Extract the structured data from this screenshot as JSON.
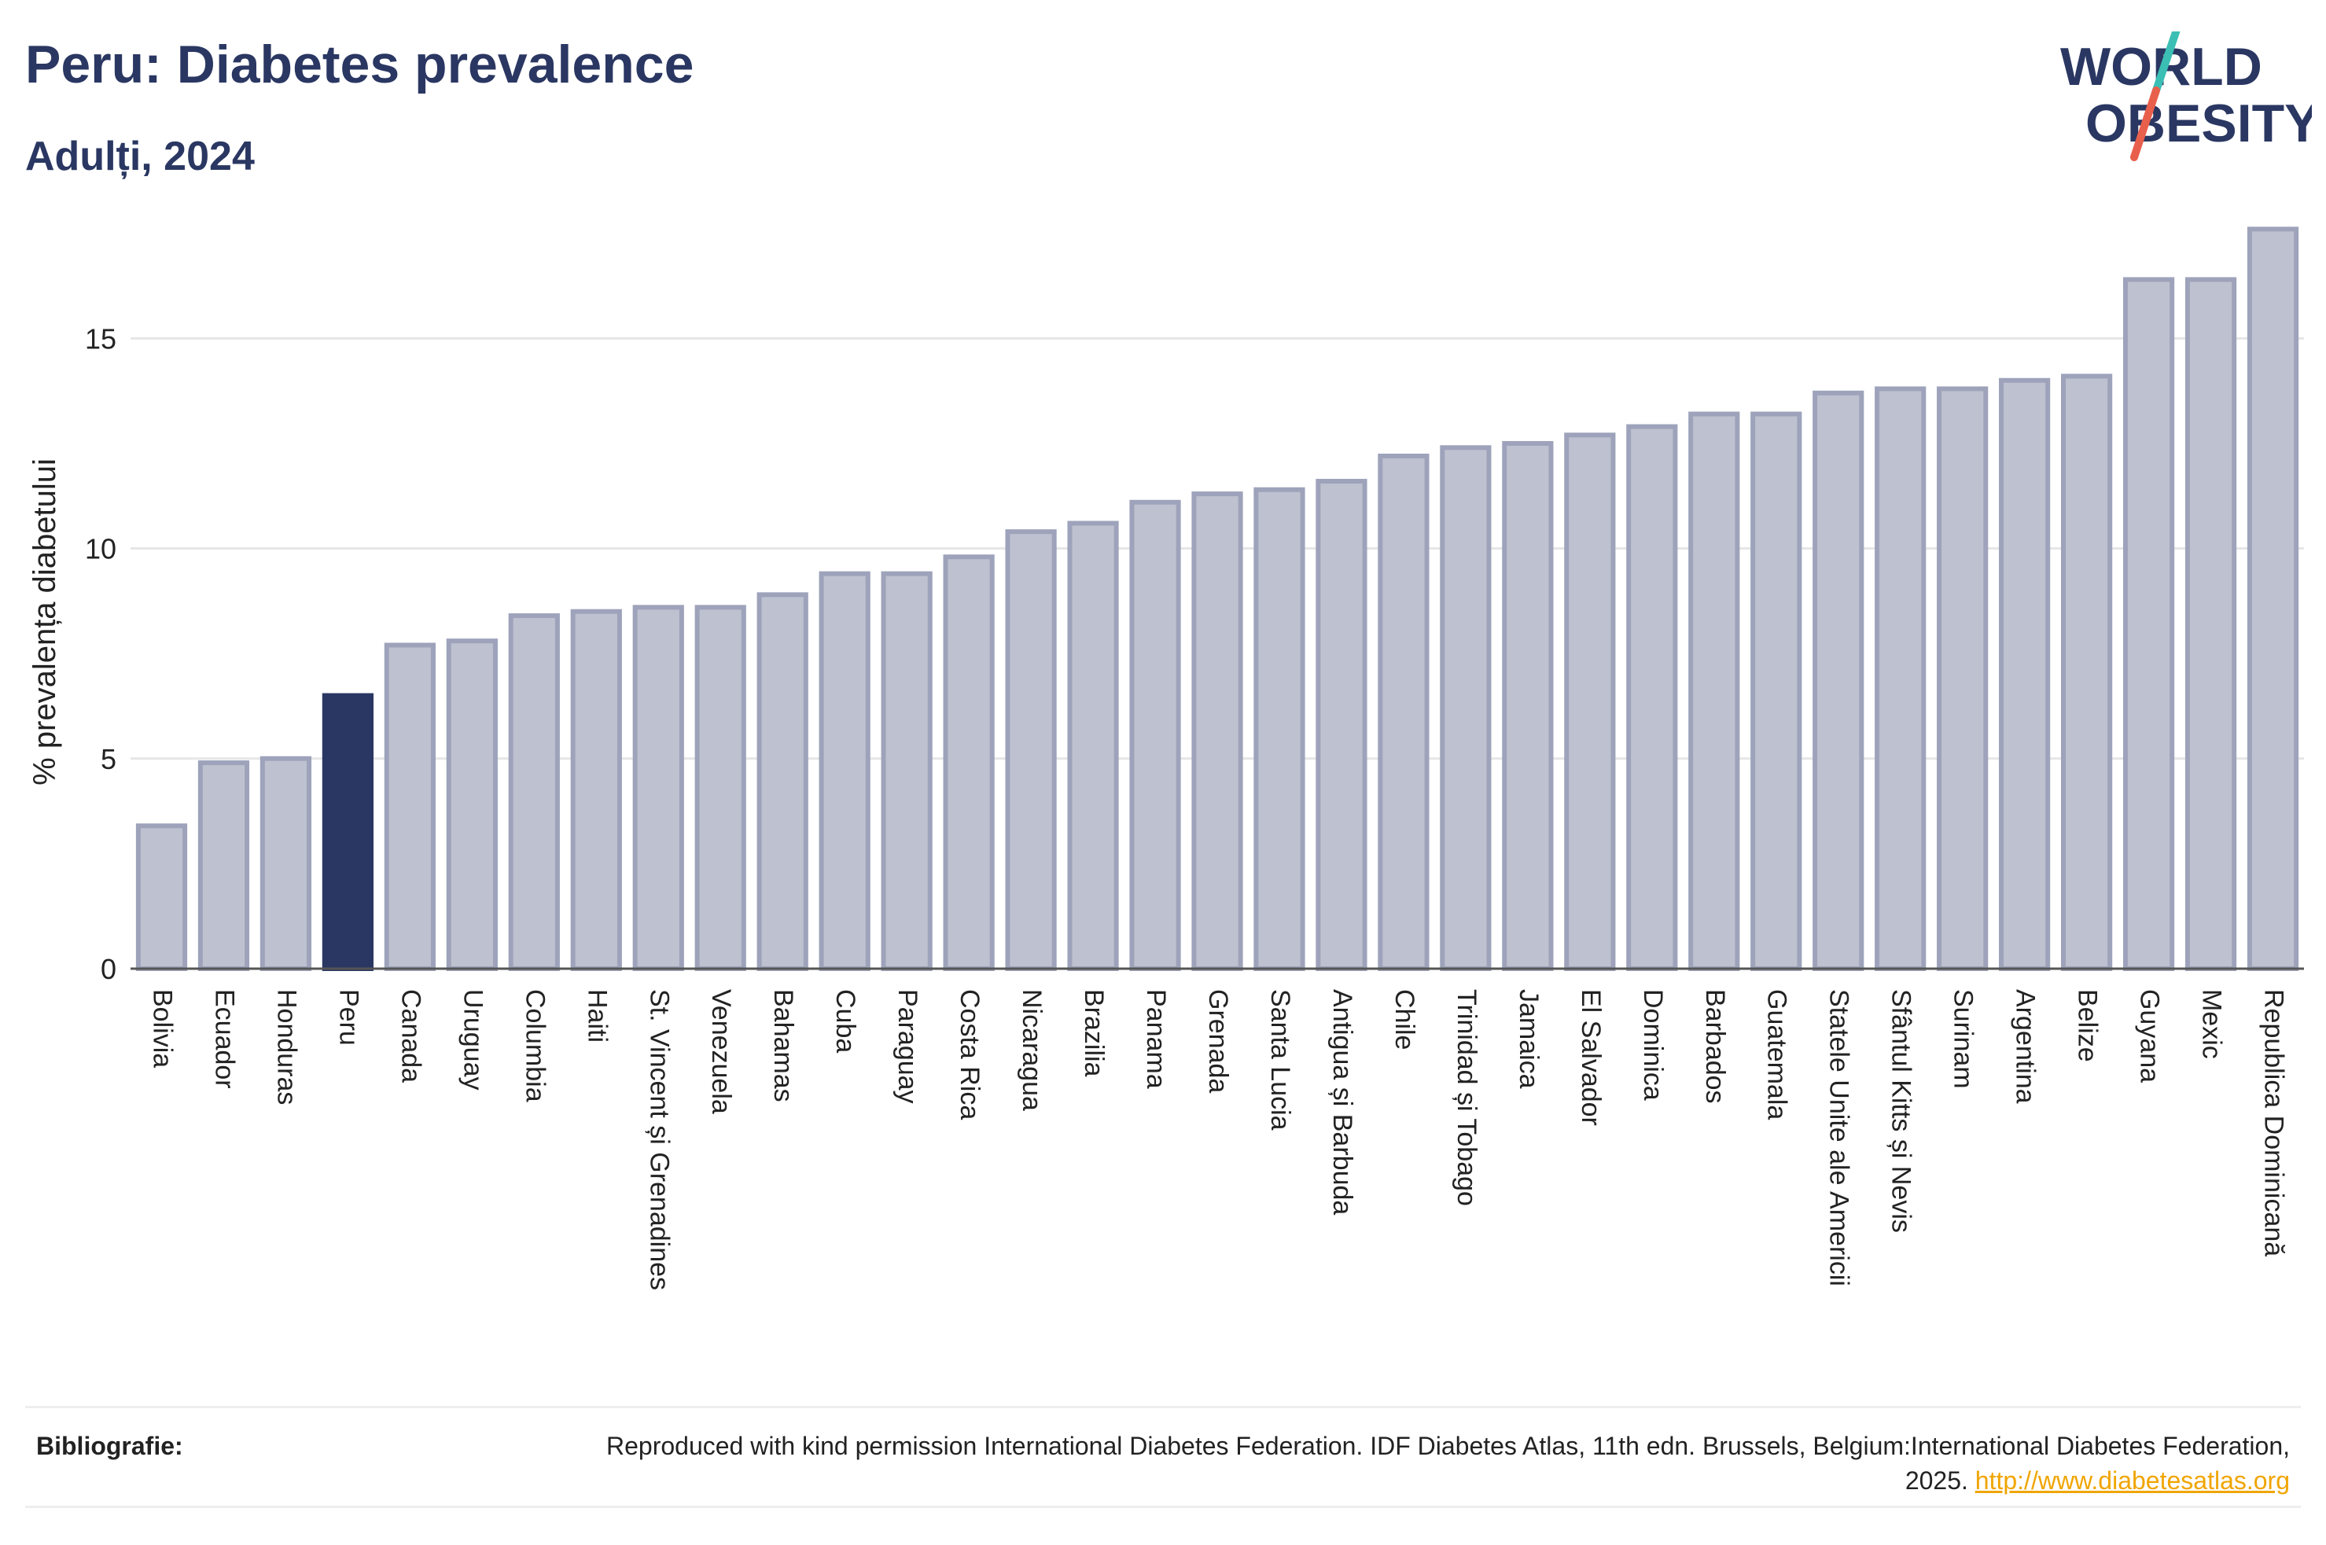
{
  "header": {
    "title": "Peru: Diabetes prevalence",
    "subtitle": "Adulți, 2024"
  },
  "logo": {
    "line1": "WORLD",
    "line2": "OBESITY",
    "accent_teal": "#3bbfb4",
    "accent_red": "#e8604c",
    "text_color": "#2a3762"
  },
  "colors": {
    "highlight": "#2a3762",
    "bar_fill": "#bec1cf",
    "bar_stroke": "#9ea3bb",
    "grid": "#e6e6e6",
    "axis": "#555555"
  },
  "chart_data": {
    "type": "bar",
    "ylabel": "% prevalența diabetului",
    "ylim": [
      0,
      18
    ],
    "yticks": [
      0,
      5,
      10,
      15
    ],
    "grid": true,
    "highlight": "Peru",
    "categories": [
      "Bolivia",
      "Ecuador",
      "Honduras",
      "Peru",
      "Canada",
      "Uruguay",
      "Columbia",
      "Haiti",
      "St. Vincent și Grenadines",
      "Venezuela",
      "Bahamas",
      "Cuba",
      "Paraguay",
      "Costa Rica",
      "Nicaragua",
      "Brazilia",
      "Panama",
      "Grenada",
      "Santa Lucia",
      "Antigua și Barbuda",
      "Chile",
      "Trinidad și Tobago",
      "Jamaica",
      "El Salvador",
      "Dominica",
      "Barbados",
      "Guatemala",
      "Statele Unite ale Americii",
      "Sfântul Kitts și Nevis",
      "Surinam",
      "Argentina",
      "Belize",
      "Guyana",
      "Mexic",
      "Republica Dominicană"
    ],
    "values": [
      3.4,
      4.9,
      5.0,
      6.5,
      7.7,
      7.8,
      8.4,
      8.5,
      8.6,
      8.6,
      8.9,
      9.4,
      9.4,
      9.8,
      10.4,
      10.6,
      11.1,
      11.3,
      11.4,
      11.6,
      12.2,
      12.4,
      12.5,
      12.7,
      12.9,
      13.2,
      13.2,
      13.7,
      13.8,
      13.8,
      14.0,
      14.1,
      16.4,
      16.4,
      17.6
    ]
  },
  "footer": {
    "label": "Bibliografie:",
    "text": "Reproduced with kind permission International Diabetes Federation. IDF Diabetes Atlas, 11th edn. Brussels, Belgium:International Diabetes Federation, 2025.",
    "link": "http://www.diabetesatlas.org"
  }
}
